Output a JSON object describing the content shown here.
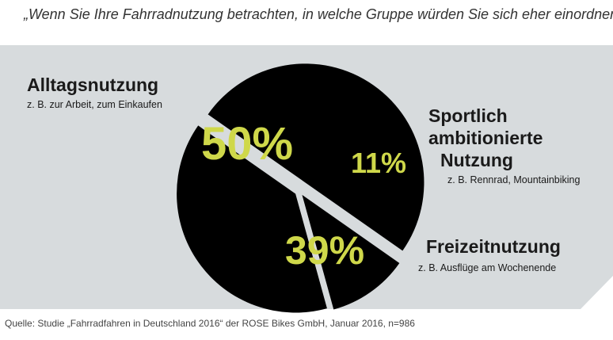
{
  "question": "„Wenn Sie Ihre Fahrradnutzung betrachten, in welche Gruppe würden Sie sich eher einordnen?“",
  "source": "Quelle: Studie „Fahrradfahren in Deutschland 2016“ der ROSE Bikes GmbH, Januar 2016, n=986",
  "colors": {
    "background_panel": "#d7dbdd",
    "slice": "#000000",
    "percent_text": "#cfd84a"
  },
  "chart_data": {
    "type": "pie",
    "title": "„Wenn Sie Ihre Fahrradnutzung betrachten, in welche Gruppe würden Sie sich eher einordnen?“",
    "unit": "%",
    "slices": [
      {
        "title": "Alltagsnutzung",
        "subtitle": "z. B. zur Arbeit, zum Einkaufen",
        "value": 50,
        "label": "50%"
      },
      {
        "title": "Sportlich ambitionierte Nutzung",
        "title_lines": [
          "Sportlich",
          "ambitionierte",
          "Nutzung"
        ],
        "subtitle": "z. B. Rennrad, Mountainbiking",
        "value": 11,
        "label": "11%"
      },
      {
        "title": "Freizeitnutzung",
        "subtitle": "z. B. Ausflüge am Wochenende",
        "value": 39,
        "label": "39%"
      }
    ]
  }
}
